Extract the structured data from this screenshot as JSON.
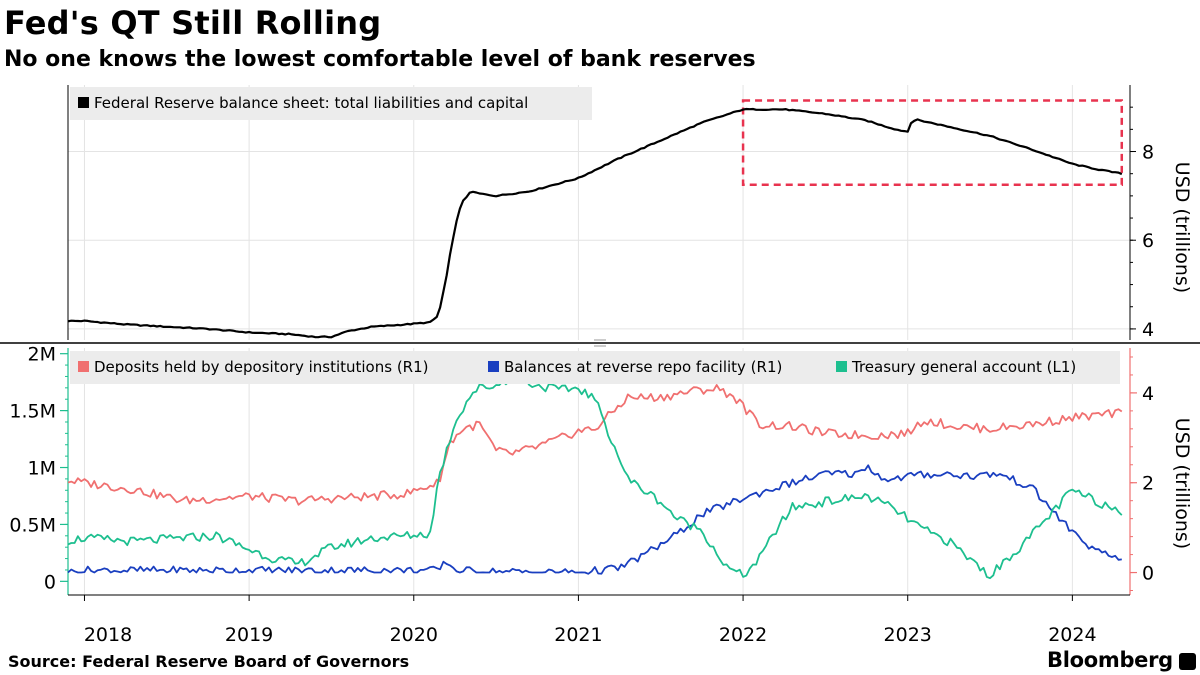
{
  "header": {
    "title": "Fed's QT Still Rolling",
    "subtitle": "No one knows the lowest comfortable level of bank reserves"
  },
  "footer": {
    "source": "Source: Federal Reserve Board of Governors",
    "brand": "Bloomberg"
  },
  "colors": {
    "balance_sheet": "#000000",
    "deposits": "#f07070",
    "reverse_repo": "#1a3fc0",
    "tga": "#1dbf8f",
    "highlight_box": "#e8334f",
    "legend_bg": "#ececec",
    "grid": "#e4e4e4"
  },
  "chart_data": [
    {
      "type": "line",
      "panel": "top",
      "title": "Fed's QT Still Rolling",
      "ylabel": "USD (trillions)",
      "ylim": [
        3.75,
        9.5
      ],
      "yticks": [
        4,
        6,
        8
      ],
      "ytick_labels": [
        "4",
        "6",
        "8"
      ],
      "xlim": [
        2017.9,
        2024.35
      ],
      "annotation": "dashed red box highlighting 2022–2024 decline",
      "highlight_range": {
        "x": [
          2022.0,
          2024.3
        ],
        "y": [
          7.25,
          9.15
        ]
      },
      "series": [
        {
          "name": "Federal Reserve balance sheet: total liabilities and capital",
          "axis": "right",
          "x": [
            2017.9,
            2018.0,
            2018.25,
            2018.5,
            2018.75,
            2019.0,
            2019.25,
            2019.4,
            2019.5,
            2019.6,
            2019.75,
            2019.95,
            2020.1,
            2020.15,
            2020.2,
            2020.23,
            2020.27,
            2020.3,
            2020.35,
            2020.4,
            2020.5,
            2020.7,
            2021.0,
            2021.25,
            2021.5,
            2021.75,
            2022.0,
            2022.25,
            2022.5,
            2022.75,
            2022.85,
            2022.95,
            2023.0,
            2023.02,
            2023.05,
            2023.2,
            2023.5,
            2023.75,
            2024.0,
            2024.15,
            2024.3
          ],
          "values": [
            4.18,
            4.18,
            4.1,
            4.05,
            4.0,
            3.92,
            3.88,
            3.82,
            3.82,
            3.95,
            4.05,
            4.1,
            4.15,
            4.3,
            5.2,
            5.9,
            6.6,
            6.9,
            7.1,
            7.05,
            7.0,
            7.1,
            7.4,
            7.85,
            8.25,
            8.65,
            8.95,
            8.95,
            8.85,
            8.7,
            8.58,
            8.48,
            8.45,
            8.65,
            8.72,
            8.6,
            8.35,
            8.05,
            7.72,
            7.6,
            7.5
          ]
        }
      ]
    },
    {
      "type": "line",
      "panel": "bottom",
      "ylabel": "USD (trillions)",
      "left_axis": {
        "ylim": [
          -0.12,
          2.05
        ],
        "ticks": [
          0,
          0.5,
          1,
          1.5,
          2
        ],
        "tick_labels": [
          "0",
          "0.5M",
          "1M",
          "1.5M",
          "2M"
        ]
      },
      "right_axis": {
        "ylim": [
          -0.5,
          5.0
        ],
        "ticks": [
          0,
          2,
          4
        ],
        "tick_labels": [
          "0",
          "2",
          "4"
        ]
      },
      "xlim": [
        2017.9,
        2024.35
      ],
      "xticks": [
        2018,
        2019,
        2020,
        2021,
        2022,
        2023,
        2024
      ],
      "xtick_labels": [
        "2018",
        "2019",
        "2020",
        "2021",
        "2022",
        "2023",
        "2024"
      ],
      "series": [
        {
          "name": "Deposits held by depository institutions (R1)",
          "axis": "right",
          "x": [
            2017.9,
            2018.0,
            2018.3,
            2018.6,
            2018.8,
            2019.0,
            2019.3,
            2019.5,
            2019.75,
            2019.95,
            2020.15,
            2020.22,
            2020.3,
            2020.4,
            2020.5,
            2020.6,
            2020.75,
            2020.9,
            2021.0,
            2021.1,
            2021.3,
            2021.5,
            2021.7,
            2021.85,
            2021.95,
            2022.0,
            2022.1,
            2022.3,
            2022.5,
            2022.75,
            2022.8,
            2023.0,
            2023.1,
            2023.3,
            2023.5,
            2023.75,
            2024.0,
            2024.3
          ],
          "values": [
            2.05,
            2.0,
            1.85,
            1.6,
            1.65,
            1.7,
            1.6,
            1.65,
            1.7,
            1.75,
            2.0,
            2.9,
            3.2,
            3.3,
            2.7,
            2.65,
            2.8,
            3.0,
            3.15,
            3.2,
            3.9,
            3.9,
            4.05,
            4.1,
            3.9,
            3.7,
            3.3,
            3.25,
            3.1,
            3.05,
            3.05,
            3.1,
            3.4,
            3.25,
            3.2,
            3.3,
            3.45,
            3.55
          ]
        },
        {
          "name": "Balances at reverse repo facility (R1)",
          "axis": "right",
          "x": [
            2017.9,
            2018.0,
            2019.0,
            2019.95,
            2020.15,
            2020.2,
            2020.25,
            2020.5,
            2021.0,
            2021.25,
            2021.4,
            2021.6,
            2021.75,
            2022.0,
            2022.25,
            2022.5,
            2022.7,
            2022.75,
            2022.8,
            2022.9,
            2023.0,
            2023.2,
            2023.4,
            2023.55,
            2023.75,
            2024.0,
            2024.15,
            2024.3
          ],
          "values": [
            0.0,
            0.05,
            0.05,
            0.05,
            0.05,
            0.25,
            0.05,
            0.02,
            0.0,
            0.1,
            0.4,
            0.85,
            1.3,
            1.65,
            1.95,
            2.2,
            2.2,
            2.4,
            2.2,
            2.05,
            2.15,
            2.2,
            2.15,
            2.2,
            1.9,
            0.9,
            0.45,
            0.3
          ]
        },
        {
          "name": "Treasury general account (L1)",
          "axis": "left",
          "x": [
            2017.9,
            2018.0,
            2018.3,
            2018.6,
            2018.8,
            2019.0,
            2019.15,
            2019.3,
            2019.5,
            2019.75,
            2019.95,
            2020.1,
            2020.15,
            2020.25,
            2020.35,
            2020.4,
            2020.5,
            2020.6,
            2020.75,
            2020.9,
            2021.0,
            2021.1,
            2021.3,
            2021.5,
            2021.6,
            2021.75,
            2021.9,
            2022.0,
            2022.1,
            2022.2,
            2022.3,
            2022.5,
            2022.75,
            2022.9,
            2023.0,
            2023.1,
            2023.25,
            2023.5,
            2023.75,
            2024.0,
            2024.15,
            2024.3
          ],
          "values": [
            0.36,
            0.38,
            0.35,
            0.38,
            0.4,
            0.28,
            0.2,
            0.15,
            0.3,
            0.38,
            0.4,
            0.42,
            0.9,
            1.4,
            1.65,
            1.7,
            1.72,
            1.8,
            1.72,
            1.68,
            1.7,
            1.6,
            0.9,
            0.7,
            0.55,
            0.45,
            0.12,
            0.05,
            0.2,
            0.45,
            0.65,
            0.7,
            0.75,
            0.65,
            0.55,
            0.45,
            0.35,
            0.05,
            0.4,
            0.8,
            0.7,
            0.62
          ]
        }
      ]
    }
  ]
}
